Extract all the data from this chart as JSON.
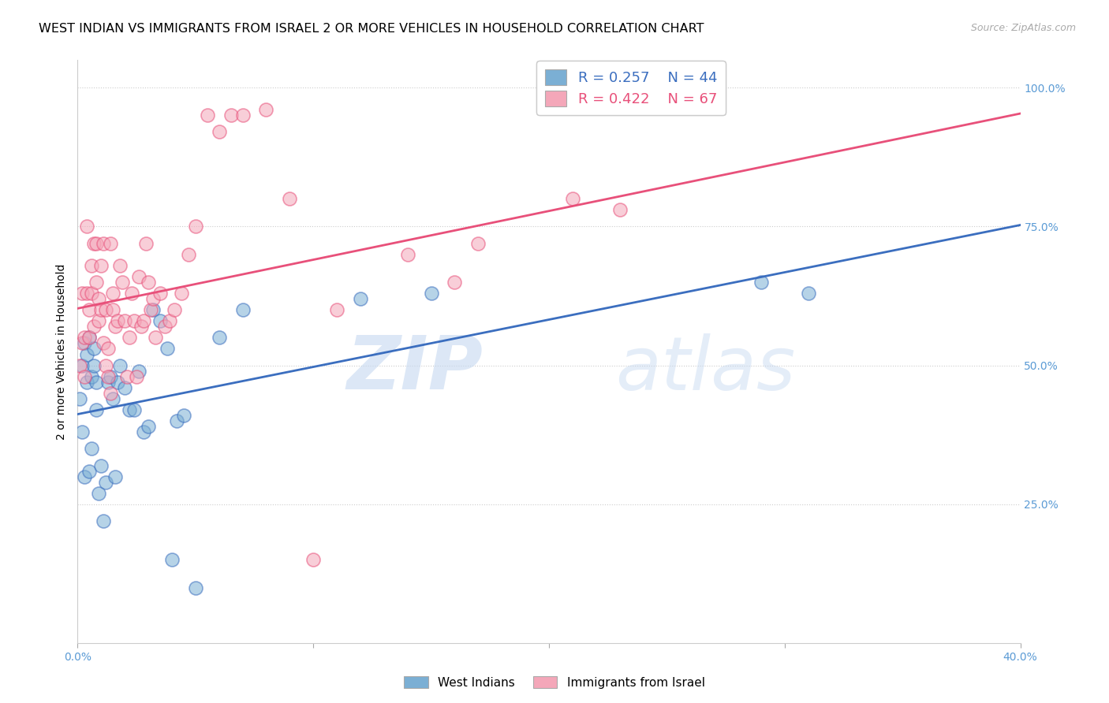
{
  "title": "WEST INDIAN VS IMMIGRANTS FROM ISRAEL 2 OR MORE VEHICLES IN HOUSEHOLD CORRELATION CHART",
  "source": "Source: ZipAtlas.com",
  "ylabel": "2 or more Vehicles in Household",
  "xmin": 0.0,
  "xmax": 0.4,
  "ymin": 0.0,
  "ymax": 1.05,
  "xtick_labels": [
    "0.0%",
    "",
    "",
    "",
    "40.0%"
  ],
  "xtick_vals": [
    0.0,
    0.1,
    0.2,
    0.3,
    0.4
  ],
  "ytick_labels": [
    "25.0%",
    "50.0%",
    "75.0%",
    "100.0%"
  ],
  "ytick_vals": [
    0.25,
    0.5,
    0.75,
    1.0
  ],
  "blue_color": "#7BAFD4",
  "pink_color": "#F4A7B9",
  "blue_line_color": "#3B6EBF",
  "pink_line_color": "#E8507A",
  "legend_blue_label": "West Indians",
  "legend_pink_label": "Immigrants from Israel",
  "legend_blue_r": "R = 0.257",
  "legend_blue_n": "N = 44",
  "legend_pink_r": "R = 0.422",
  "legend_pink_n": "N = 67",
  "blue_x": [
    0.001,
    0.002,
    0.002,
    0.003,
    0.003,
    0.004,
    0.004,
    0.005,
    0.005,
    0.006,
    0.006,
    0.007,
    0.007,
    0.008,
    0.008,
    0.009,
    0.01,
    0.011,
    0.012,
    0.013,
    0.014,
    0.015,
    0.016,
    0.017,
    0.018,
    0.02,
    0.022,
    0.024,
    0.026,
    0.028,
    0.03,
    0.032,
    0.035,
    0.038,
    0.04,
    0.042,
    0.045,
    0.05,
    0.06,
    0.07,
    0.12,
    0.15,
    0.29,
    0.31
  ],
  "blue_y": [
    0.44,
    0.5,
    0.38,
    0.54,
    0.3,
    0.47,
    0.52,
    0.55,
    0.31,
    0.48,
    0.35,
    0.5,
    0.53,
    0.47,
    0.42,
    0.27,
    0.32,
    0.22,
    0.29,
    0.47,
    0.48,
    0.44,
    0.3,
    0.47,
    0.5,
    0.46,
    0.42,
    0.42,
    0.49,
    0.38,
    0.39,
    0.6,
    0.58,
    0.53,
    0.15,
    0.4,
    0.41,
    0.1,
    0.55,
    0.6,
    0.62,
    0.63,
    0.65,
    0.63
  ],
  "pink_x": [
    0.001,
    0.002,
    0.002,
    0.003,
    0.003,
    0.004,
    0.004,
    0.005,
    0.005,
    0.006,
    0.006,
    0.007,
    0.007,
    0.008,
    0.008,
    0.009,
    0.009,
    0.01,
    0.01,
    0.011,
    0.011,
    0.012,
    0.012,
    0.013,
    0.013,
    0.014,
    0.014,
    0.015,
    0.015,
    0.016,
    0.017,
    0.018,
    0.019,
    0.02,
    0.021,
    0.022,
    0.023,
    0.024,
    0.025,
    0.026,
    0.027,
    0.028,
    0.029,
    0.03,
    0.031,
    0.032,
    0.033,
    0.035,
    0.037,
    0.039,
    0.041,
    0.044,
    0.047,
    0.05,
    0.055,
    0.06,
    0.065,
    0.07,
    0.08,
    0.09,
    0.1,
    0.11,
    0.14,
    0.16,
    0.17,
    0.21,
    0.23
  ],
  "pink_y": [
    0.5,
    0.54,
    0.63,
    0.48,
    0.55,
    0.63,
    0.75,
    0.55,
    0.6,
    0.63,
    0.68,
    0.72,
    0.57,
    0.65,
    0.72,
    0.58,
    0.62,
    0.6,
    0.68,
    0.72,
    0.54,
    0.6,
    0.5,
    0.48,
    0.53,
    0.45,
    0.72,
    0.63,
    0.6,
    0.57,
    0.58,
    0.68,
    0.65,
    0.58,
    0.48,
    0.55,
    0.63,
    0.58,
    0.48,
    0.66,
    0.57,
    0.58,
    0.72,
    0.65,
    0.6,
    0.62,
    0.55,
    0.63,
    0.57,
    0.58,
    0.6,
    0.63,
    0.7,
    0.75,
    0.95,
    0.92,
    0.95,
    0.95,
    0.96,
    0.8,
    0.15,
    0.6,
    0.7,
    0.65,
    0.72,
    0.8,
    0.78
  ],
  "watermark_zip": "ZIP",
  "watermark_atlas": "atlas",
  "title_fontsize": 11.5,
  "axis_label_fontsize": 10,
  "tick_fontsize": 10
}
